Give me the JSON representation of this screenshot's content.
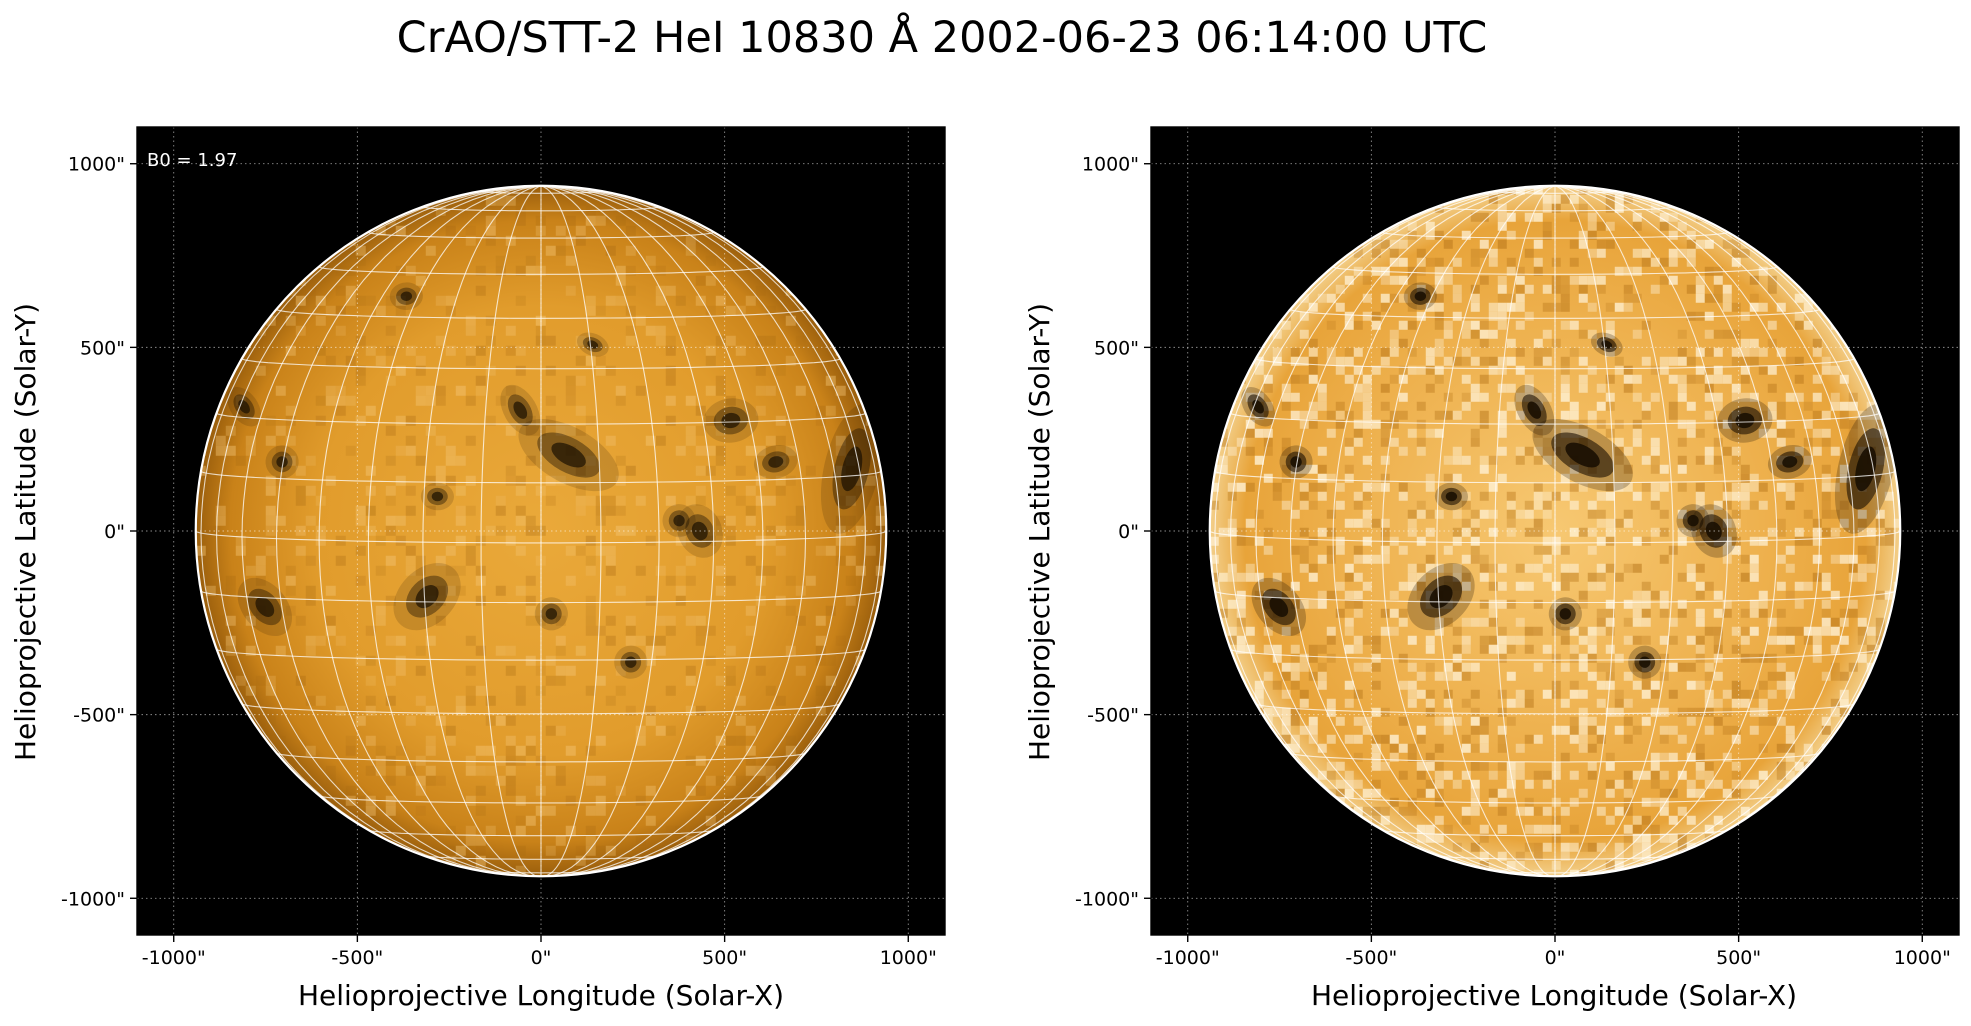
{
  "figure": {
    "title": "CrAO/STT-2 HeI 10830 Å 2002-06-23 06:14:00 UTC"
  },
  "panels": [
    {
      "id": "left",
      "xlabel": "Helioprojective Longitude (Solar-X)",
      "ylabel": "Helioprojective Latitude (Solar-Y)",
      "annotation": "B0 = 1.97",
      "contrast": "normal"
    },
    {
      "id": "right",
      "xlabel": "Helioprojective Longitude (Solar-X)",
      "ylabel": "Helioprojective Latitude (Solar-Y)",
      "annotation": "",
      "contrast": "enhanced"
    }
  ],
  "axes": {
    "x_ticks": [
      "-1000\"",
      "-500\"",
      "0\"",
      "500\"",
      "1000\""
    ],
    "y_ticks": [
      "1000\"",
      "500\"",
      "0\"",
      "-500\"",
      "-1000\""
    ],
    "x_tick_values": [
      -1000,
      -500,
      0,
      500,
      1000
    ],
    "y_tick_values": [
      1000,
      500,
      0,
      -500,
      -1000
    ],
    "xlim": [
      -1100,
      1100
    ],
    "ylim": [
      -1100,
      1100
    ],
    "solar_radius_arcsec": 940,
    "b0_deg": 1.97,
    "grid": true
  },
  "colors": {
    "background": "#000000",
    "disk_base": "#e7a633",
    "limb": "#ffffff",
    "grid_lines": "#ffffff",
    "dark_feature": "#1a0f02"
  }
}
